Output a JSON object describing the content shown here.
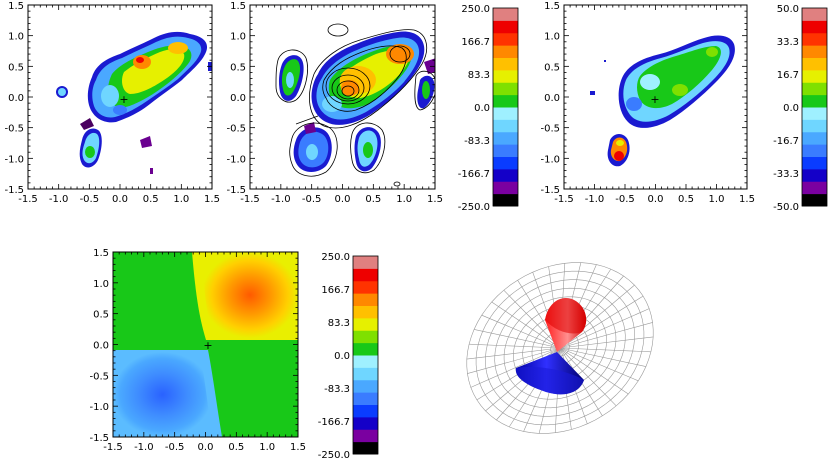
{
  "chart_data": [
    {
      "id": "map-observed-1",
      "type": "heatmap",
      "title": "",
      "xlabel": "",
      "ylabel": "",
      "xlim": [
        -1.5,
        1.5
      ],
      "ylim": [
        -1.5,
        1.5
      ],
      "xticks": [
        "-1.5",
        "-1.0",
        "-0.5",
        "0.0",
        "0.5",
        "1.0",
        "1.5"
      ],
      "yticks": [
        "-1.5",
        "-1.0",
        "-0.5",
        "0.0",
        "0.5",
        "1.0",
        "1.5"
      ],
      "center_marker": "+",
      "contours": false
    },
    {
      "id": "map-observed-2",
      "type": "heatmap",
      "title": "",
      "xlabel": "",
      "ylabel": "",
      "xlim": [
        -1.5,
        1.5
      ],
      "ylim": [
        -1.5,
        1.5
      ],
      "xticks": [
        "-1.5",
        "-1.0",
        "-0.5",
        "0.0",
        "0.5",
        "1.0",
        "1.5"
      ],
      "yticks": [
        "-1.5",
        "-1.0",
        "-0.5",
        "0.0",
        "0.5",
        "1.0",
        "1.5"
      ],
      "contours": true,
      "colorbar": {
        "labels": [
          "250.0",
          "166.7",
          "83.3",
          "0.0",
          "-83.3",
          "-166.7",
          "-250.0"
        ],
        "range": [
          -250,
          250
        ]
      }
    },
    {
      "id": "map-residual",
      "type": "heatmap",
      "title": "",
      "xlabel": "",
      "ylabel": "",
      "xlim": [
        -1.5,
        1.5
      ],
      "ylim": [
        -1.5,
        1.5
      ],
      "xticks": [
        "-1.5",
        "-1.0",
        "-0.5",
        "0.0",
        "0.5",
        "1.0",
        "1.5"
      ],
      "yticks": [
        "-1.5",
        "-1.0",
        "-0.5",
        "0.0",
        "0.5",
        "1.0",
        "1.5"
      ],
      "center_marker": "+",
      "colorbar": {
        "labels": [
          "50.0",
          "33.3",
          "16.7",
          "0.0",
          "-16.7",
          "-33.3",
          "-50.0"
        ],
        "range": [
          -50,
          50
        ]
      }
    },
    {
      "id": "map-model",
      "type": "heatmap",
      "title": "",
      "xlabel": "",
      "ylabel": "",
      "xlim": [
        -1.5,
        1.5
      ],
      "ylim": [
        -1.5,
        1.5
      ],
      "xticks": [
        "-1.5",
        "-1.0",
        "-0.5",
        "0.0",
        "0.5",
        "1.0",
        "1.5"
      ],
      "yticks": [
        "-1.5",
        "-1.0",
        "-0.5",
        "0.0",
        "0.5",
        "1.0",
        "1.5"
      ],
      "center_marker": "+",
      "colorbar": {
        "labels": [
          "250.0",
          "166.7",
          "83.3",
          "0.0",
          "-83.3",
          "-166.7",
          "-250.0"
        ],
        "range": [
          -250,
          250
        ]
      }
    },
    {
      "id": "cone-model-3d",
      "type": "other",
      "description_lobes": [
        "red",
        "blue"
      ]
    }
  ],
  "colors": {
    "palette": [
      "#000000",
      "#7a00a0",
      "#1400c8",
      "#0a3cff",
      "#3a7cff",
      "#4aa8ff",
      "#6fd6ff",
      "#9ff0ff",
      "#18c818",
      "#7fe000",
      "#e6f000",
      "#ffc000",
      "#ff8800",
      "#ff3300",
      "#ee0000",
      "#e08080"
    ],
    "red_lobe": "#e00000",
    "blue_lobe": "#1010d0"
  }
}
